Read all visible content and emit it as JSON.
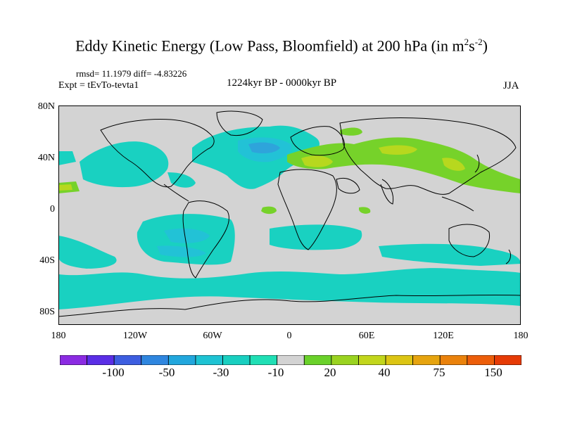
{
  "title_main": "Eddy Kinetic Energy (Low Pass, Bloomfield) at 200 hPa (in m",
  "title_sup1": "2",
  "title_mid": "s",
  "title_sup2": "-2",
  "title_end": ")",
  "rmsd_text": "rmsd= 11.1979 diff= -4.83226",
  "expt_text": "Expt = tEvTo-tevta1",
  "period_text": "1224kyr BP - 0000kyr BP",
  "season_text": "JJA",
  "lat_labels": [
    "80N",
    "40N",
    "0",
    "40S",
    "80S"
  ],
  "lon_labels": [
    "180",
    "120W",
    "60W",
    "0",
    "60E",
    "120E",
    "180"
  ],
  "colorbar": {
    "colors": [
      "#8b2be2",
      "#5a2ee6",
      "#3d5ee0",
      "#2f86df",
      "#22a7dd",
      "#1ec3d3",
      "#19cfc0",
      "#20dfb5",
      "#d3d3d3",
      "#6ad12a",
      "#9ad320",
      "#c2d61c",
      "#dcc514",
      "#e6a40f",
      "#ea820c",
      "#ec5e0a",
      "#e63b06"
    ],
    "labels": [
      "-100",
      "-50",
      "-30",
      "-10",
      "20",
      "40",
      "75",
      "150"
    ]
  },
  "colors": {
    "land_bg": "#d3d3d3",
    "neg_light": "#19d1c1",
    "neg_mid": "#22c2d6",
    "neg_strong": "#2ea4db",
    "pos_green": "#76d22a",
    "pos_yellow": "#b7d81e",
    "coast": "#000000"
  }
}
